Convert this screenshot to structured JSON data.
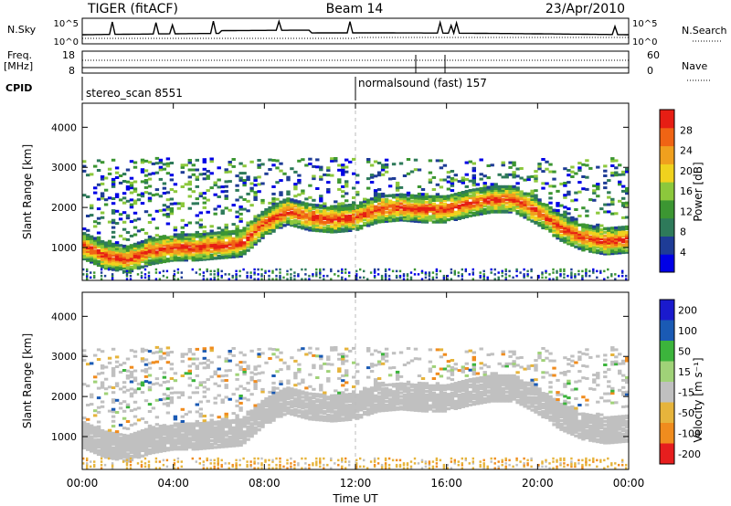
{
  "header": {
    "title": "TIGER (fitACF)",
    "beam": "Beam 14",
    "date": "23/Apr/2010"
  },
  "strip_nsky": {
    "left_label": "N.Sky",
    "left_ticks": [
      "10^5",
      "10^0"
    ],
    "right_ticks": [
      "10^5",
      "10^0"
    ],
    "right_label": "N.Search",
    "right_style": "dotted"
  },
  "strip_freq": {
    "left_label_lines": [
      "Freq.",
      "[MHz]"
    ],
    "left_ticks": [
      "18",
      "8"
    ],
    "right_ticks": [
      "60",
      "0"
    ],
    "right_label": "Nave",
    "right_style": "dotted"
  },
  "cpid": {
    "label": "CPID",
    "segments": [
      {
        "text": "stereo_scan 8551",
        "start_hour": 0
      },
      {
        "text": "normalsound (fast) 157",
        "start_hour": 12
      }
    ]
  },
  "time_axis": {
    "ticks": [
      "00:00",
      "04:00",
      "08:00",
      "12:00",
      "16:00",
      "20:00",
      "00:00"
    ],
    "label": "Time UT",
    "range_hours": [
      0,
      24
    ]
  },
  "panels": [
    {
      "ylabel": "Slant Range [km]",
      "yticks": [
        "1000",
        "2000",
        "3000",
        "4000"
      ],
      "cbar_label": "Power [dB]",
      "cbar_ticks": [
        "4",
        "8",
        "12",
        "16",
        "20",
        "24",
        "28"
      ]
    },
    {
      "ylabel": "Slant Range [km]",
      "yticks": [
        "1000",
        "2000",
        "3000",
        "4000"
      ],
      "cbar_label": "Velocity [m s⁻¹]",
      "cbar_ticks": [
        "200",
        "100",
        "50",
        "15",
        "-15",
        "-50",
        "-100",
        "-200"
      ]
    }
  ],
  "chart_data": {
    "type": "heatmap",
    "x_range_hours": [
      0,
      24
    ],
    "y_range_km": [
      180,
      4600
    ],
    "power_scale_db": [
      0,
      32
    ],
    "velocity_scale": [
      {
        "label": "200",
        "color": "#1a1acd"
      },
      {
        "label": "100",
        "color": "#1a5ab4"
      },
      {
        "label": "50",
        "color": "#3cb43c"
      },
      {
        "label": "15",
        "color": "#a0d278"
      },
      {
        "label": "-15",
        "color": "#c0c0c0"
      },
      {
        "label": "-50",
        "color": "#e6b43c"
      },
      {
        "label": "-100",
        "color": "#f08c1e"
      },
      {
        "label": "-200",
        "color": "#e61e1e"
      }
    ],
    "power_colors": [
      "#0000e6",
      "#1e3c96",
      "#2e7a5a",
      "#3c9632",
      "#8cc83c",
      "#f0d21e",
      "#f0a01e",
      "#f06414",
      "#e61e14"
    ],
    "main_echo_band_km": [
      [
        0,
        1050
      ],
      [
        1,
        800
      ],
      [
        2,
        700
      ],
      [
        3,
        900
      ],
      [
        4,
        1000
      ],
      [
        5,
        1000
      ],
      [
        6,
        1050
      ],
      [
        7,
        1100
      ],
      [
        8,
        1600
      ],
      [
        9,
        1900
      ],
      [
        10,
        1750
      ],
      [
        11,
        1700
      ],
      [
        12,
        1750
      ],
      [
        13,
        1950
      ],
      [
        14,
        2000
      ],
      [
        15,
        1950
      ],
      [
        16,
        1950
      ],
      [
        17,
        2100
      ],
      [
        18,
        2200
      ],
      [
        19,
        2200
      ],
      [
        20,
        1900
      ],
      [
        21,
        1500
      ],
      [
        22,
        1250
      ],
      [
        23,
        1150
      ],
      [
        24,
        1200
      ]
    ]
  }
}
